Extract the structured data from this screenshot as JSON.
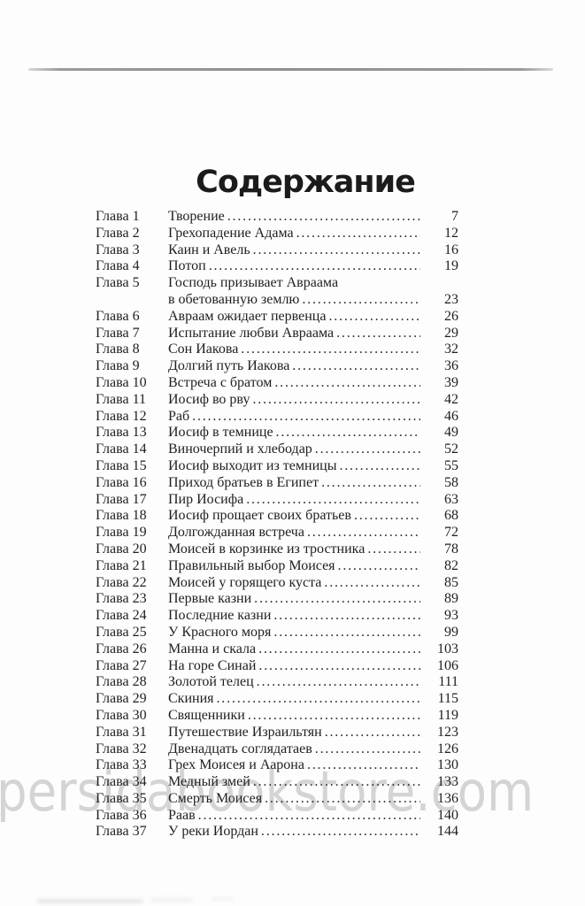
{
  "page": {
    "title": "Содержание",
    "watermark": "persidabookstore.com",
    "leader_dots": "..........................................................................................................................................................."
  },
  "toc": {
    "entries": [
      {
        "chapter": "Глава 1",
        "title": "Творение",
        "page": "7"
      },
      {
        "chapter": "Глава 2",
        "title": "Грехопадение Адама",
        "page": "12"
      },
      {
        "chapter": "Глава 3",
        "title": "Каин и Авель",
        "page": "16"
      },
      {
        "chapter": "Глава 4",
        "title": "Потоп",
        "page": "19"
      },
      {
        "chapter": "Глава 5",
        "title": "Господь призывает Авраама",
        "title2": "в обетованную землю",
        "page": "23"
      },
      {
        "chapter": "Глава 6",
        "title": "Авраам ожидает первенца",
        "page": "26"
      },
      {
        "chapter": "Глава 7",
        "title": "Испытание любви Авраама",
        "page": "29"
      },
      {
        "chapter": "Глава 8",
        "title": "Сон Иакова",
        "page": "32"
      },
      {
        "chapter": "Глава 9",
        "title": "Долгий путь Иакова",
        "page": "36"
      },
      {
        "chapter": "Глава 10",
        "title": "Встреча с братом",
        "page": "39"
      },
      {
        "chapter": "Глава 11",
        "title": "Иосиф во рву",
        "page": "42"
      },
      {
        "chapter": "Глава 12",
        "title": "Раб",
        "page": "46"
      },
      {
        "chapter": "Глава 13",
        "title": "Иосиф в темнице",
        "page": "49"
      },
      {
        "chapter": "Глава 14",
        "title": "Виночерпий и хлебодар",
        "page": "52"
      },
      {
        "chapter": "Глава 15",
        "title": "Иосиф выходит из темницы",
        "page": "55"
      },
      {
        "chapter": "Глава 16",
        "title": "Приход братьев в Египет",
        "page": "58"
      },
      {
        "chapter": "Глава 17",
        "title": "Пир Иосифа",
        "page": "63"
      },
      {
        "chapter": "Глава 18",
        "title": "Иосиф прощает своих братьев",
        "page": "68"
      },
      {
        "chapter": "Глава 19",
        "title": "Долгожданная встреча",
        "page": "72"
      },
      {
        "chapter": "Глава 20",
        "title": "Моисей в корзинке из тростника",
        "page": "78"
      },
      {
        "chapter": "Глава 21",
        "title": "Правильный выбор Моисея",
        "page": "82"
      },
      {
        "chapter": "Глава 22",
        "title": "Моисей у горящего куста",
        "page": "85"
      },
      {
        "chapter": "Глава 23",
        "title": "Первые казни",
        "page": "89"
      },
      {
        "chapter": "Глава 24",
        "title": "Последние казни",
        "page": "93"
      },
      {
        "chapter": "Глава 25",
        "title": "У Красного моря",
        "page": "99"
      },
      {
        "chapter": "Глава 26",
        "title": "Манна и скала",
        "page": "103"
      },
      {
        "chapter": "Глава 27",
        "title": "На горе Синай",
        "page": "106"
      },
      {
        "chapter": "Глава 28",
        "title": "Золотой телец",
        "page": "111"
      },
      {
        "chapter": "Глава 29",
        "title": "Скиния",
        "page": "115"
      },
      {
        "chapter": "Глава 30",
        "title": "Священники",
        "page": "119"
      },
      {
        "chapter": "Глава 31",
        "title": "Путешествие Израильтян",
        "page": "123"
      },
      {
        "chapter": "Глава 32",
        "title": "Двенадцать соглядатаев",
        "page": "126"
      },
      {
        "chapter": "Глава 33",
        "title": "Грех Моисея и Аарона",
        "page": "130"
      },
      {
        "chapter": "Глава 34",
        "title": "Медный змей",
        "page": "133"
      },
      {
        "chapter": "Глава 35",
        "title": "Смерть Моисея",
        "page": "136"
      },
      {
        "chapter": "Глава 36",
        "title": "Раав",
        "page": "140"
      },
      {
        "chapter": "Глава 37",
        "title": "У реки Иордан",
        "page": "144"
      }
    ]
  }
}
